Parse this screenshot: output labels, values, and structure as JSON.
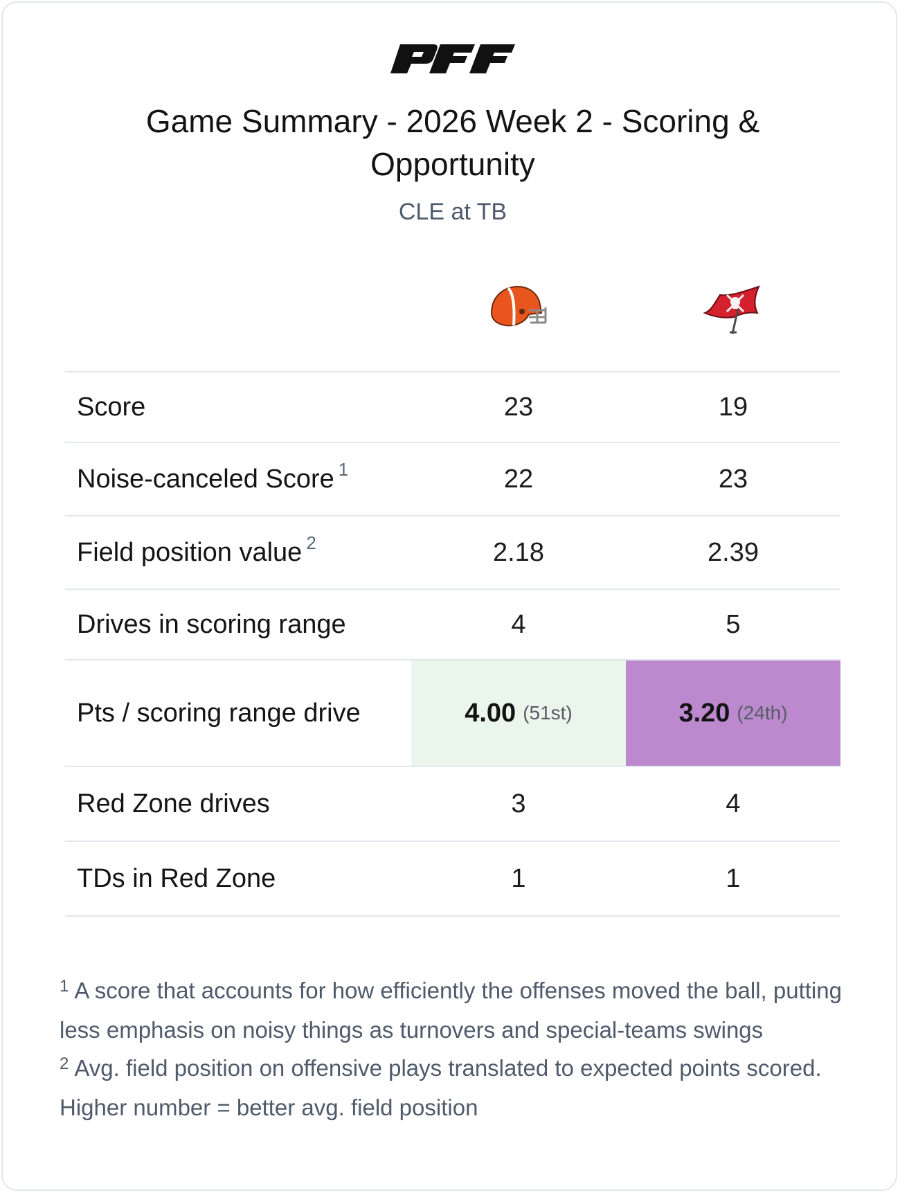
{
  "header": {
    "logo_text": "PFF",
    "title": "Game Summary - 2026 Week 2 - Scoring & Opportunity",
    "subtitle": "CLE at TB"
  },
  "teams": {
    "away": {
      "abbr": "CLE",
      "logo_icon": "browns-helmet-icon",
      "color": "#e85c1f"
    },
    "home": {
      "abbr": "TB",
      "logo_icon": "buccaneers-flag-icon",
      "color": "#d5202e"
    }
  },
  "rows": [
    {
      "label": "Score",
      "note": "",
      "away": "23",
      "home": "19"
    },
    {
      "label": "Noise-canceled Score",
      "note": "1",
      "away": "22",
      "home": "23"
    },
    {
      "label": "Field position value",
      "note": "2",
      "away": "2.18",
      "home": "2.39"
    },
    {
      "label": "Drives in scoring range",
      "note": "",
      "away": "4",
      "home": "5"
    },
    {
      "label": "Pts / scoring range drive",
      "note": "",
      "away": "4.00",
      "away_rank": "(51st)",
      "home": "3.20",
      "home_rank": "(24th)"
    },
    {
      "label": "Red Zone drives",
      "note": "",
      "away": "3",
      "home": "4"
    },
    {
      "label": "TDs in Red Zone",
      "note": "",
      "away": "1",
      "home": "1"
    }
  ],
  "highlight_colors": {
    "away_pts_per_drive": "#eaf5ec",
    "home_pts_per_drive": "#bd89ce"
  },
  "footnotes": [
    {
      "marker": "1",
      "text": "A score that accounts for how efficiently the offenses moved the ball, putting less emphasis on noisy things as turnovers and special-teams swings"
    },
    {
      "marker": "2",
      "text": "Avg. field position on offensive plays translated to expected points scored. Higher number = better avg. field position"
    }
  ]
}
